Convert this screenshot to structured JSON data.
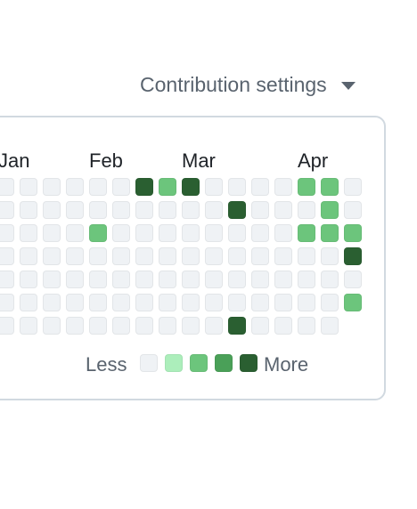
{
  "settings": {
    "label": "Contribution settings",
    "icon": "triangle-down-icon"
  },
  "months": [
    "Jan",
    "Feb",
    "Mar",
    "Apr"
  ],
  "colors": {
    "level0": "#eff2f5",
    "level1": "#aceebb",
    "level2": "#6cc57c",
    "level3": "#4aa058",
    "level4": "#2a5f31"
  },
  "grid": {
    "visible_columns": 16,
    "rows": 7,
    "levels_by_column": [
      [
        0,
        0,
        0,
        0,
        0,
        0,
        0
      ],
      [
        0,
        0,
        0,
        0,
        0,
        0,
        0
      ],
      [
        0,
        0,
        0,
        0,
        0,
        0,
        0
      ],
      [
        0,
        0,
        0,
        0,
        0,
        0,
        0
      ],
      [
        0,
        0,
        2,
        0,
        0,
        0,
        0
      ],
      [
        0,
        0,
        0,
        0,
        0,
        0,
        0
      ],
      [
        4,
        0,
        0,
        0,
        0,
        0,
        0
      ],
      [
        2,
        0,
        0,
        0,
        0,
        0,
        0
      ],
      [
        4,
        0,
        0,
        0,
        0,
        0,
        0
      ],
      [
        0,
        0,
        0,
        0,
        0,
        0,
        0
      ],
      [
        0,
        4,
        0,
        0,
        0,
        0,
        4
      ],
      [
        0,
        0,
        0,
        0,
        0,
        0,
        0
      ],
      [
        0,
        0,
        0,
        0,
        0,
        0,
        0
      ],
      [
        2,
        0,
        2,
        0,
        0,
        0,
        0
      ],
      [
        2,
        2,
        2,
        0,
        0,
        0,
        0
      ],
      [
        0,
        0,
        2,
        4,
        0,
        2,
        null
      ]
    ]
  },
  "legend": {
    "less": "Less",
    "more": "More",
    "levels": [
      0,
      1,
      2,
      3,
      4
    ]
  }
}
